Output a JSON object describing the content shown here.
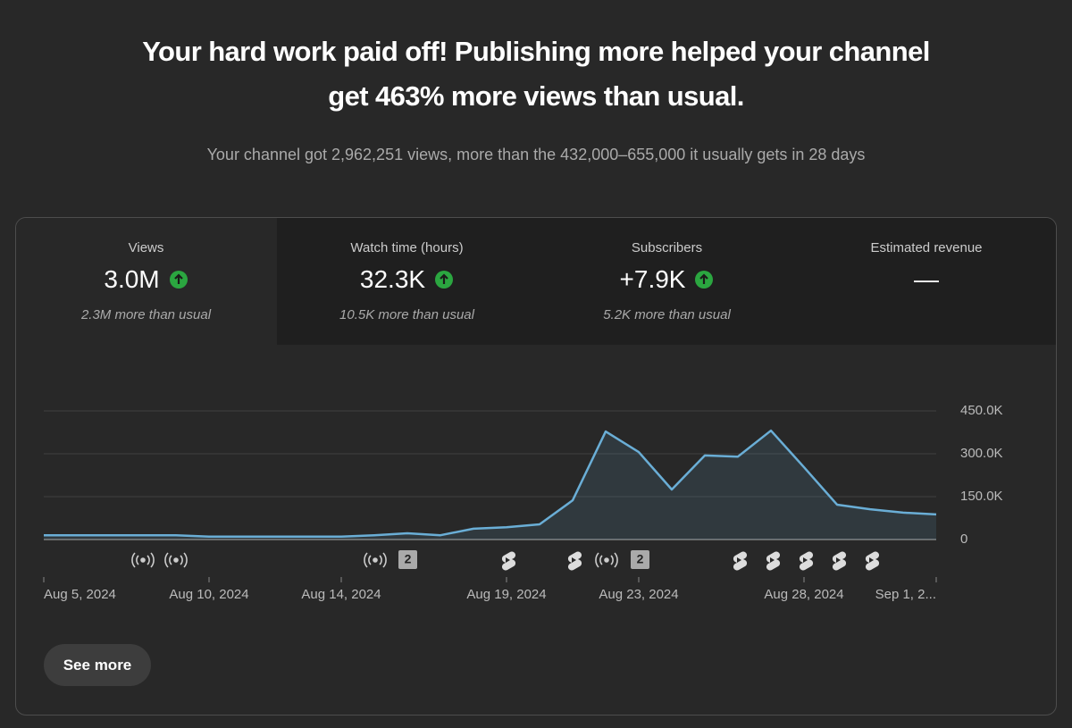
{
  "header": {
    "title_line1": "Your hard work paid off! Publishing more helped your channel",
    "title_line2": "get 463% more views than usual.",
    "subtitle": "Your channel got 2,962,251 views, more than the 432,000–655,000 it usually gets in 28 days"
  },
  "metrics": [
    {
      "label": "Views",
      "value": "3.0M",
      "note": "2.3M more than usual"
    },
    {
      "label": "Watch time (hours)",
      "value": "32.3K",
      "note": "10.5K more than usual"
    },
    {
      "label": "Subscribers",
      "value": "+7.9K",
      "note": "5.2K more than usual"
    },
    {
      "label": "Estimated revenue",
      "value": "—"
    }
  ],
  "chart_data": {
    "type": "line",
    "categories": [
      "Aug 5, 2024",
      null,
      null,
      null,
      null,
      "Aug 10, 2024",
      null,
      null,
      null,
      "Aug 14, 2024",
      null,
      null,
      null,
      null,
      "Aug 19, 2024",
      null,
      null,
      null,
      "Aug 23, 2024",
      null,
      null,
      null,
      null,
      "Aug 28, 2024",
      null,
      null,
      null,
      "Sep 1, 2..."
    ],
    "values": [
      15000,
      15000,
      15000,
      15000,
      15000,
      10000,
      10000,
      10000,
      10000,
      10000,
      15000,
      22000,
      15000,
      38000,
      43000,
      53000,
      137000,
      378000,
      306000,
      175000,
      294000,
      290000,
      381000,
      253000,
      122000,
      106000,
      94000,
      88000
    ],
    "color": "#6aaed6",
    "ylim": [
      0,
      450000
    ],
    "yticks": [
      0,
      {
        "value": 150000,
        "label": "150.0K"
      },
      {
        "value": 300000,
        "label": "300.0K"
      },
      {
        "value": 450000,
        "label": "450.0K"
      }
    ],
    "grid": true,
    "event_badges": [
      "2",
      "2"
    ]
  },
  "button": {
    "label": "See more"
  }
}
